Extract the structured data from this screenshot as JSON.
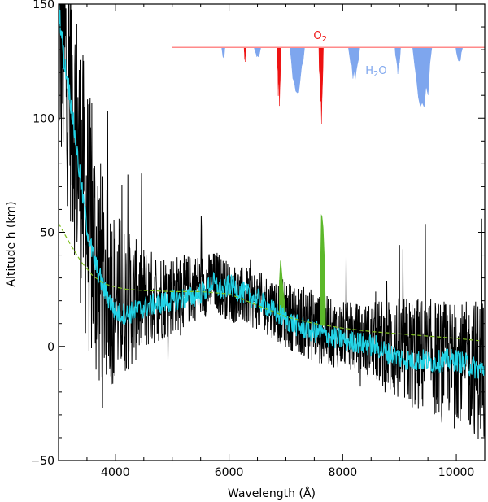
{
  "chart_data": {
    "type": "line",
    "title": "",
    "xlabel": "Wavelength (Å)",
    "ylabel": "Altitude h (km)",
    "xlim": [
      3000,
      10500
    ],
    "ylim": [
      -50,
      150
    ],
    "xticks": [
      4000,
      6000,
      8000,
      10000
    ],
    "yticks": [
      -50,
      0,
      50,
      100,
      150
    ],
    "x_tick_labels": [
      "4000",
      "6000",
      "8000",
      "10000"
    ],
    "y_tick_labels": [
      "−50",
      "0",
      "50",
      "100",
      "150"
    ],
    "grid": false,
    "colors": {
      "noisy": "#000000",
      "smooth": "#22d3e6",
      "model": "#7fbf1f",
      "green_bands": "#5cb82a",
      "o2_absorption": "#ee1111",
      "h2o_absorption": "#7ea6ee",
      "baseline": "#ff8a8a"
    },
    "series": [
      {
        "key": "noisy",
        "x": [
          3000,
          3100,
          3200,
          3300,
          3400,
          3500,
          3600,
          3700,
          3800,
          4000,
          4200,
          4400,
          4600,
          4800,
          5000,
          5200,
          5400,
          5600,
          5800,
          6000,
          6200,
          6400,
          6600,
          6800,
          7000,
          7200,
          7400,
          7600,
          7800,
          8000,
          8200,
          8400,
          8600,
          8800,
          9000,
          9200,
          9400,
          9600,
          9800,
          10000,
          10200,
          10400
        ],
        "center": [
          140,
          128,
          115,
          95,
          75,
          58,
          45,
          35,
          28,
          22,
          20,
          20,
          21,
          22,
          23,
          24,
          26,
          27,
          28,
          24,
          22,
          21,
          19,
          17,
          14,
          12,
          10,
          8,
          6,
          5,
          4,
          3,
          2,
          0,
          -2,
          -3,
          -4,
          -5,
          -5,
          -6,
          -8,
          -10
        ],
        "spread": [
          60,
          60,
          60,
          60,
          60,
          60,
          58,
          55,
          45,
          40,
          32,
          26,
          22,
          20,
          18,
          16,
          15,
          14,
          14,
          13,
          13,
          13,
          13,
          14,
          15,
          15,
          16,
          16,
          15,
          15,
          15,
          16,
          18,
          22,
          24,
          25,
          26,
          26,
          25,
          25,
          28,
          32
        ]
      },
      {
        "key": "smooth",
        "x": [
          3000,
          3100,
          3200,
          3300,
          3400,
          3500,
          3600,
          3700,
          3800,
          3900,
          4000,
          4200,
          4400,
          4600,
          4800,
          5000,
          5200,
          5400,
          5600,
          5700,
          5800,
          5900,
          6000,
          6200,
          6400,
          6600,
          6800,
          7000,
          7200,
          7400,
          7600,
          7800,
          8000,
          8200,
          8400,
          8600,
          8800,
          9000,
          9200,
          9400,
          9600,
          9800,
          10000,
          10200,
          10400
        ],
        "y": [
          150,
          125,
          110,
          90,
          70,
          52,
          40,
          32,
          25,
          20,
          15,
          14,
          16,
          18,
          19,
          20,
          21,
          22,
          25,
          28,
          26,
          24,
          27,
          24,
          22,
          19,
          15,
          12,
          9,
          7,
          6,
          4,
          3,
          2,
          1,
          0,
          -3,
          -5,
          -6,
          -6,
          -7,
          -6,
          -6,
          -8,
          -10
        ]
      },
      {
        "key": "model",
        "x": [
          3000,
          3200,
          3400,
          3600,
          3800,
          4000,
          4200,
          4500,
          5000,
          5500,
          6000,
          6500,
          7000,
          7500,
          8000,
          8500,
          9000,
          9500,
          10000,
          10400
        ],
        "y": [
          54,
          45,
          37,
          31,
          27.5,
          26,
          25,
          24.5,
          24,
          24,
          23,
          18,
          13,
          10,
          8,
          6.5,
          5.5,
          4.5,
          3.5,
          2.5
        ]
      }
    ],
    "green_bands": [
      {
        "x": [
          6880,
          6900,
          6920,
          6940,
          6960,
          6980
        ],
        "y_top": [
          28,
          38,
          36,
          30,
          24,
          20
        ],
        "y_bottom": [
          14,
          14,
          14,
          14,
          14,
          14
        ]
      },
      {
        "x": [
          7600,
          7620,
          7640,
          7660,
          7680,
          7700
        ],
        "y_top": [
          28,
          58,
          57,
          52,
          40,
          18
        ],
        "y_bottom": [
          9,
          9,
          9,
          9,
          9,
          9
        ]
      }
    ],
    "absorption_panel": {
      "baseline_y": 131,
      "baseline_x": [
        5000,
        10500
      ],
      "labels": {
        "o2": "O2",
        "h2o": "H2O"
      },
      "o2_bands": [
        {
          "center": 6280,
          "width": 30,
          "depth_y": 124
        },
        {
          "center": 6880,
          "width": 70,
          "depth_y": 104
        },
        {
          "center": 7620,
          "width": 80,
          "depth_y": 95
        }
      ],
      "h2o_bands": [
        {
          "center": 5900,
          "width": 60,
          "depth_y": 126
        },
        {
          "center": 6500,
          "width": 120,
          "depth_y": 126
        },
        {
          "center": 7200,
          "width": 260,
          "depth_y": 106
        },
        {
          "center": 8200,
          "width": 200,
          "depth_y": 114
        },
        {
          "center": 8970,
          "width": 100,
          "depth_y": 118
        },
        {
          "center": 9400,
          "width": 340,
          "depth_y": 95
        },
        {
          "center": 10050,
          "width": 120,
          "depth_y": 124
        }
      ]
    }
  }
}
